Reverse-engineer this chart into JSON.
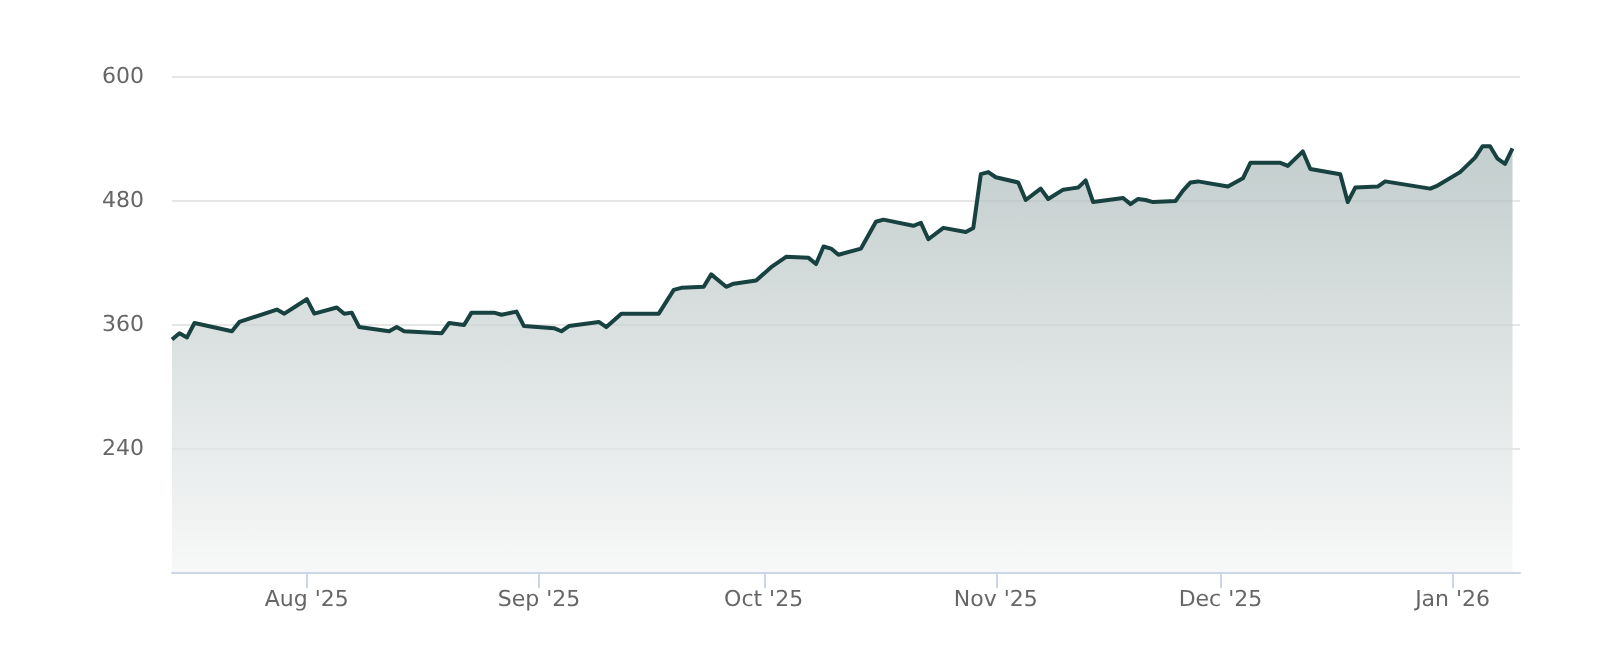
{
  "chart_data": {
    "type": "area",
    "x": [
      "2025-07-14",
      "2025-07-15",
      "2025-07-16",
      "2025-07-17",
      "2025-07-22",
      "2025-07-23",
      "2025-07-28",
      "2025-07-29",
      "2025-08-01",
      "2025-08-02",
      "2025-08-05",
      "2025-08-06",
      "2025-08-07",
      "2025-08-08",
      "2025-08-12",
      "2025-08-13",
      "2025-08-14",
      "2025-08-19",
      "2025-08-20",
      "2025-08-22",
      "2025-08-23",
      "2025-08-26",
      "2025-08-27",
      "2025-08-29",
      "2025-08-30",
      "2025-09-03",
      "2025-09-04",
      "2025-09-05",
      "2025-09-09",
      "2025-09-10",
      "2025-09-12",
      "2025-09-17",
      "2025-09-19",
      "2025-09-20",
      "2025-09-23",
      "2025-09-24",
      "2025-09-26",
      "2025-09-27",
      "2025-09-30",
      "2025-10-02",
      "2025-10-04",
      "2025-10-07",
      "2025-10-08",
      "2025-10-09",
      "2025-10-10",
      "2025-10-11",
      "2025-10-14",
      "2025-10-16",
      "2025-10-17",
      "2025-10-21",
      "2025-10-22",
      "2025-10-23",
      "2025-10-25",
      "2025-10-28",
      "2025-10-29",
      "2025-10-30",
      "2025-10-31",
      "2025-11-01",
      "2025-11-04",
      "2025-11-05",
      "2025-11-07",
      "2025-11-08",
      "2025-11-10",
      "2025-11-11",
      "2025-11-12",
      "2025-11-13",
      "2025-11-14",
      "2025-11-18",
      "2025-11-19",
      "2025-11-20",
      "2025-11-21",
      "2025-11-22",
      "2025-11-25",
      "2025-11-26",
      "2025-11-27",
      "2025-11-28",
      "2025-12-02",
      "2025-12-04",
      "2025-12-05",
      "2025-12-09",
      "2025-12-10",
      "2025-12-12",
      "2025-12-13",
      "2025-12-17",
      "2025-12-18",
      "2025-12-19",
      "2025-12-22",
      "2025-12-23",
      "2025-12-29",
      "2025-12-30",
      "2026-01-02",
      "2026-01-04",
      "2026-01-05",
      "2026-01-06",
      "2026-01-07",
      "2026-01-08",
      "2026-01-09"
    ],
    "series": [
      {
        "color": "#17423f",
        "values": [
          345,
          351,
          347,
          361,
          353,
          362,
          374,
          370,
          384,
          370,
          376,
          370,
          371,
          357,
          353,
          357,
          353,
          351,
          361,
          359,
          371,
          371,
          369,
          372,
          358,
          356,
          353,
          358,
          362,
          357,
          370,
          370,
          393,
          395,
          396,
          408,
          396,
          399,
          402,
          415,
          425,
          424,
          418,
          435,
          433,
          427,
          433,
          459,
          461,
          455,
          458,
          442,
          453,
          449,
          453,
          505,
          507,
          502,
          497,
          480,
          491,
          481,
          490,
          491,
          492,
          499,
          478,
          482,
          476,
          481,
          480,
          478,
          479,
          489,
          497,
          498,
          493,
          501,
          516,
          516,
          513,
          527,
          510,
          505,
          478,
          492,
          493,
          498,
          491,
          494,
          507,
          521,
          532,
          532,
          520,
          515,
          530
        ]
      }
    ],
    "xlim": [
      "2025-07-14",
      "2026-01-10"
    ],
    "xticks": [
      {
        "value": "2025-08-01",
        "label": "Aug '25"
      },
      {
        "value": "2025-09-01",
        "label": "Sep '25"
      },
      {
        "value": "2025-10-01",
        "label": "Oct '25"
      },
      {
        "value": "2025-11-01",
        "label": "Nov '25"
      },
      {
        "value": "2025-12-01",
        "label": "Dec '25"
      },
      {
        "value": "2026-01-01",
        "label": "Jan '26"
      }
    ],
    "ylim": [
      120,
      600
    ],
    "yticks": [
      240,
      360,
      480,
      600
    ],
    "grid": "y",
    "marker": "none"
  }
}
